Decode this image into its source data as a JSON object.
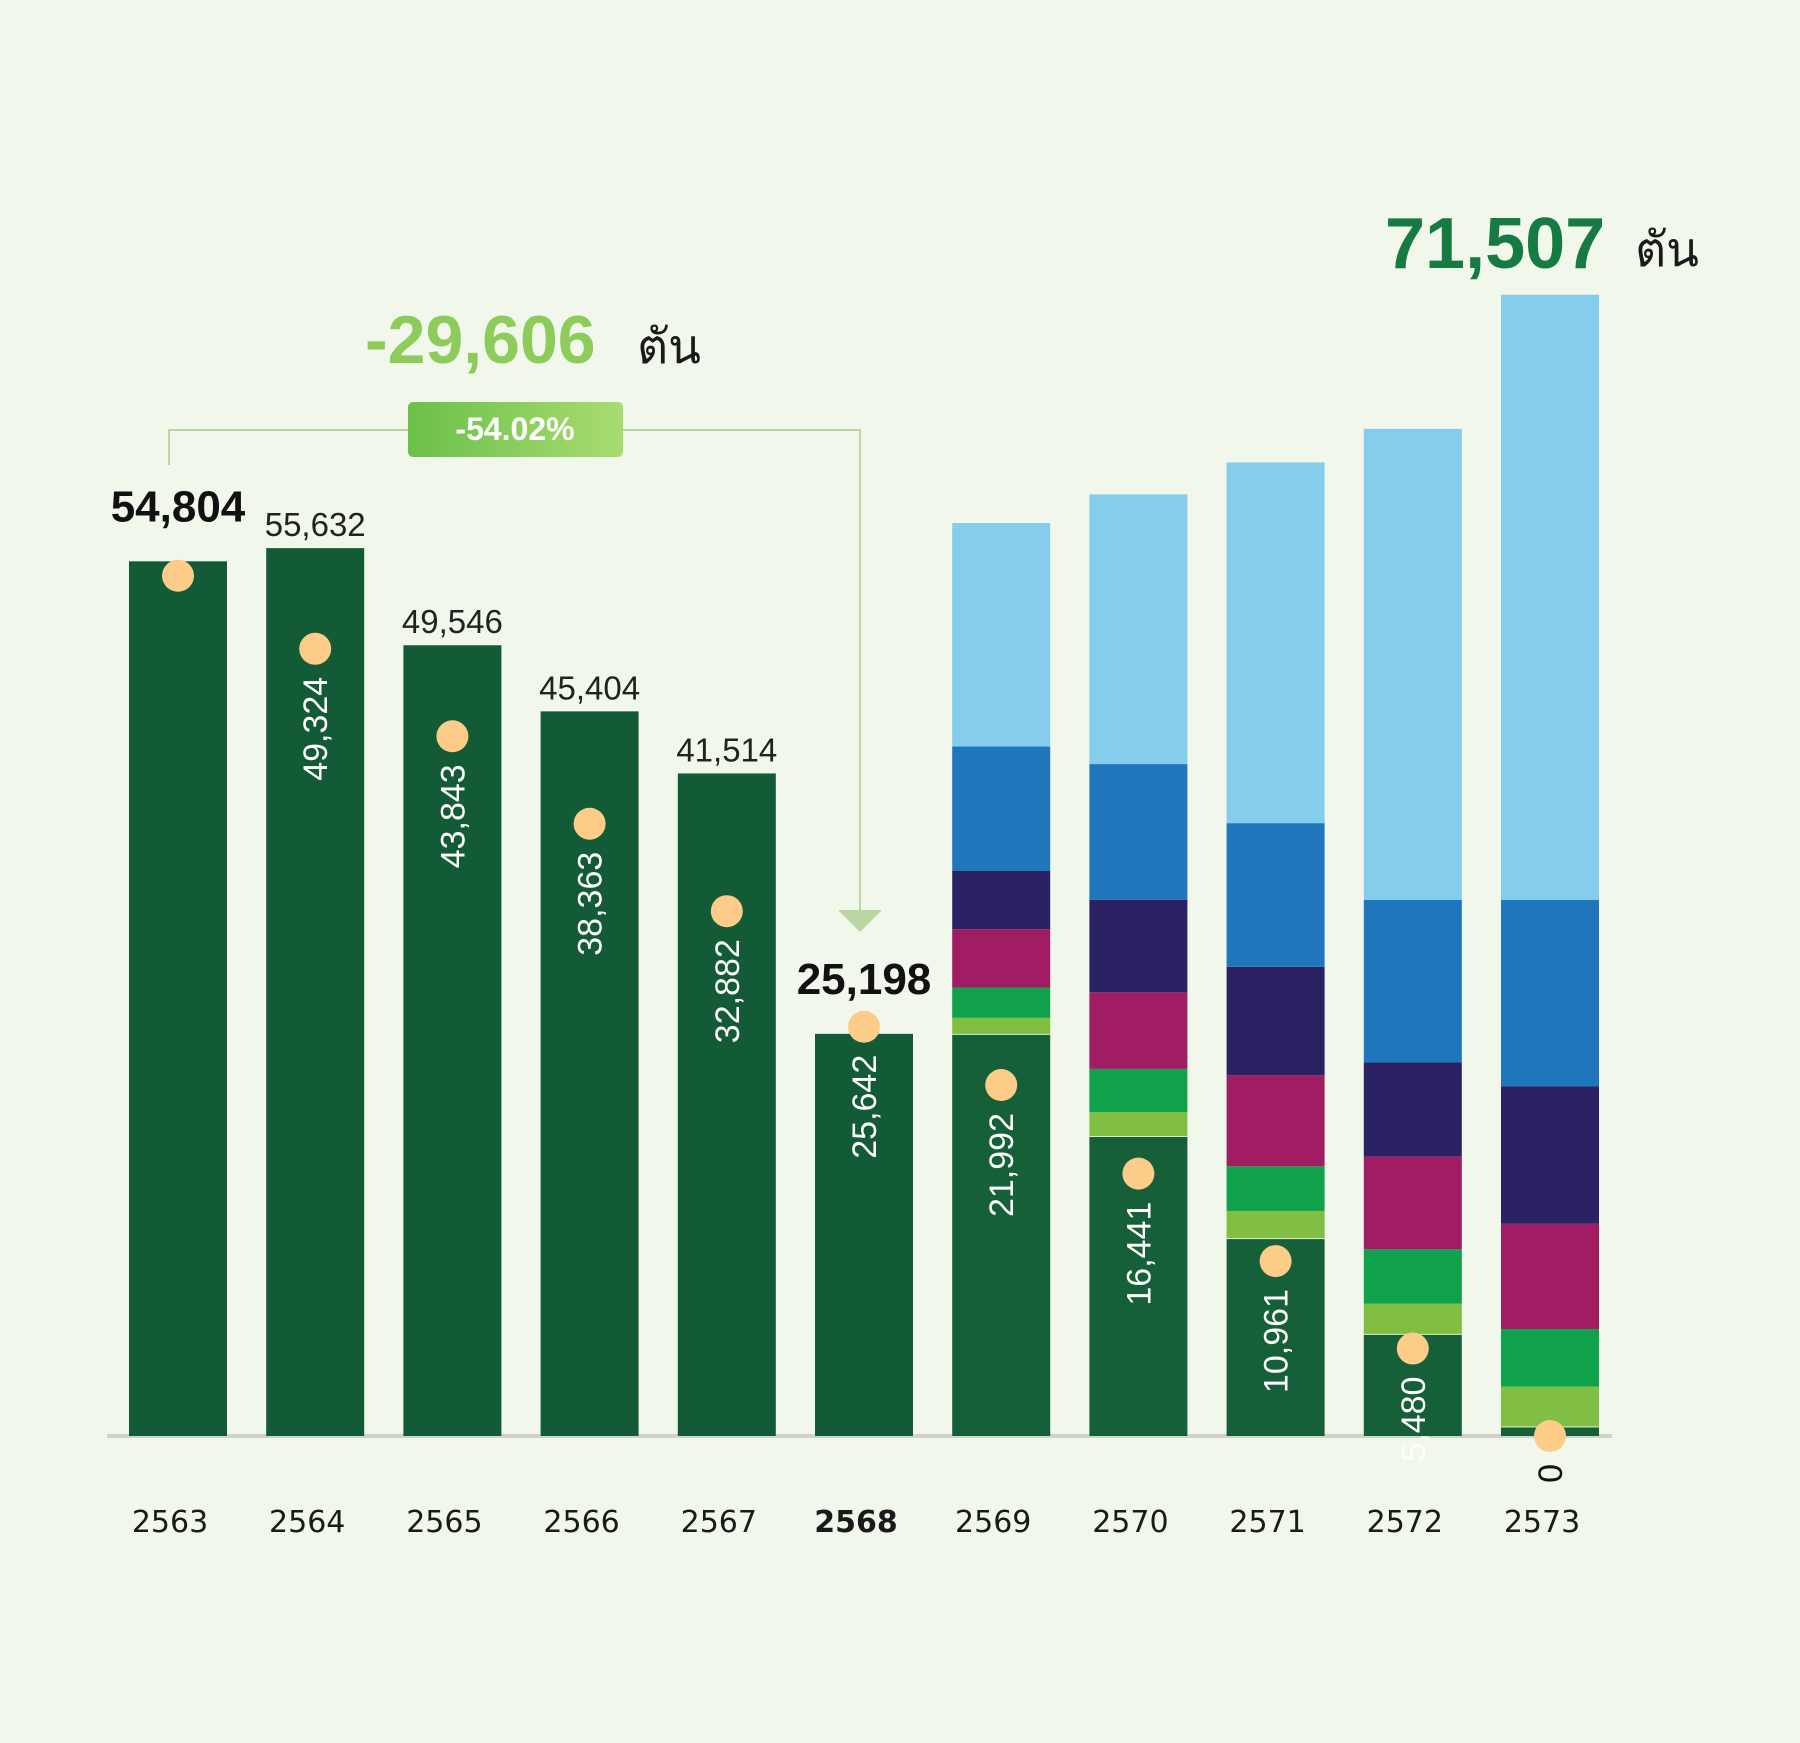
{
  "chart_data": {
    "type": "bar",
    "categories": [
      "2563",
      "2564",
      "2565",
      "2566",
      "2567",
      "2568",
      "2569",
      "2570",
      "2571",
      "2572",
      "2573"
    ],
    "highlight_category": "2568",
    "bar_values": [
      54804,
      55632,
      49546,
      45404,
      41514,
      25198,
      null,
      null,
      null,
      null,
      null
    ],
    "bar_value_labels": [
      "54,804",
      "55,632",
      "49,546",
      "45,404",
      "41,514",
      "25,198",
      "",
      "",
      "",
      "",
      ""
    ],
    "bold_value_labels": [
      "2563",
      "2568"
    ],
    "dot_values": [
      53900,
      49324,
      43843,
      38363,
      32882,
      25642,
      21992,
      16441,
      10961,
      5480,
      0
    ],
    "dot_value_labels": [
      "",
      "49,324",
      "43,843",
      "38,363",
      "32,882",
      "25,642",
      "21,992",
      "16,441",
      "10,961",
      "5,480",
      "0"
    ],
    "projection": [
      {
        "category": "2569",
        "stack": [
          25198,
          26200,
          28100,
          31750,
          35400,
          43200,
          57200
        ]
      },
      {
        "category": "2570",
        "stack": [
          18800,
          20300,
          23000,
          27800,
          33600,
          42100,
          59000
        ]
      },
      {
        "category": "2571",
        "stack": [
          12400,
          14100,
          16900,
          22600,
          29400,
          38400,
          61000
        ]
      },
      {
        "category": "2572",
        "stack": [
          6400,
          8300,
          11700,
          17500,
          23400,
          33600,
          63100
        ]
      },
      {
        "category": "2573",
        "stack": [
          600,
          3100,
          6700,
          13300,
          21900,
          33600,
          71507
        ]
      }
    ],
    "stack_colors": [
      "#156039",
      "#80bf43",
      "#10a24b",
      "#a01d63",
      "#2a2262",
      "#1f76bd",
      "#84cdec",
      "#d6eef8"
    ],
    "gap_color": "#e6f0c8",
    "bar_color": "#135b37",
    "dot_color": "#fccc88",
    "ylim": [
      0,
      80000
    ],
    "annotations": {
      "reduction_value": "-29,606",
      "reduction_unit": "ตัน",
      "reduction_percent": "-54.02%",
      "total_value": "71,507",
      "total_unit": "ตัน"
    },
    "grid": false,
    "legend": "none"
  },
  "colors": {
    "reduction": "#8dcb5b",
    "total": "#167a43",
    "badge_start": "#6cc04a",
    "badge_end": "#a8dc70",
    "bracket": "#b9d6a3"
  }
}
